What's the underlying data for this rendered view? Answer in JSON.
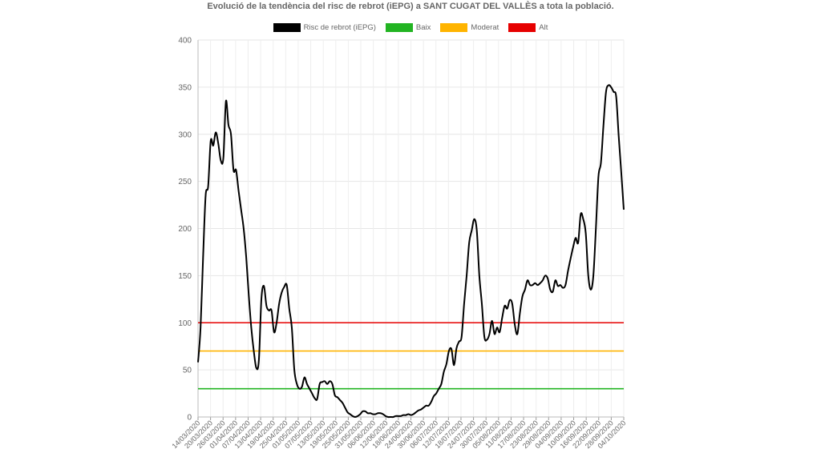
{
  "chart_data": {
    "type": "line",
    "title": "Evolució de la tendència del risc de rebrot (iEPG) a SANT CUGAT DEL VALLÈS a tota la població.",
    "xlabel": "",
    "ylabel": "",
    "ylim": [
      0,
      400
    ],
    "y_ticks": [
      0,
      50,
      100,
      150,
      200,
      250,
      300,
      350,
      400
    ],
    "grid": true,
    "legend_position": "top",
    "x_tick_labels": [
      "14/03/2020",
      "20/03/2020",
      "26/03/2020",
      "01/04/2020",
      "07/04/2020",
      "13/04/2020",
      "19/04/2020",
      "25/04/2020",
      "01/05/2020",
      "07/05/2020",
      "13/05/2020",
      "19/05/2020",
      "25/05/2020",
      "31/05/2020",
      "06/06/2020",
      "12/06/2020",
      "18/06/2020",
      "24/06/2020",
      "30/06/2020",
      "06/07/2020",
      "12/07/2020",
      "18/07/2020",
      "24/07/2020",
      "30/07/2020",
      "05/08/2020",
      "11/08/2020",
      "17/08/2020",
      "23/08/2020",
      "29/08/2020",
      "04/09/2020",
      "10/09/2020",
      "16/09/2020",
      "22/09/2020",
      "28/09/2020",
      "04/10/2020"
    ],
    "series": [
      {
        "name": "Risc de rebrot (iEPG)",
        "color": "#000000",
        "points": [
          [
            0,
            58
          ],
          [
            1,
            95
          ],
          [
            2,
            170
          ],
          [
            3,
            235
          ],
          [
            4,
            245
          ],
          [
            5,
            293
          ],
          [
            6,
            288
          ],
          [
            7,
            302
          ],
          [
            8,
            290
          ],
          [
            9,
            272
          ],
          [
            10,
            275
          ],
          [
            11,
            335
          ],
          [
            12,
            310
          ],
          [
            13,
            300
          ],
          [
            14,
            262
          ],
          [
            15,
            262
          ],
          [
            16,
            240
          ],
          [
            17,
            220
          ],
          [
            18,
            200
          ],
          [
            19,
            170
          ],
          [
            20,
            130
          ],
          [
            21,
            95
          ],
          [
            22,
            70
          ],
          [
            23,
            52
          ],
          [
            24,
            60
          ],
          [
            25,
            125
          ],
          [
            26,
            139
          ],
          [
            27,
            118
          ],
          [
            28,
            113
          ],
          [
            29,
            113
          ],
          [
            30,
            90
          ],
          [
            31,
            100
          ],
          [
            32,
            120
          ],
          [
            33,
            132
          ],
          [
            34,
            138
          ],
          [
            35,
            140
          ],
          [
            36,
            115
          ],
          [
            37,
            95
          ],
          [
            38,
            50
          ],
          [
            39,
            35
          ],
          [
            40,
            30
          ],
          [
            41,
            32
          ],
          [
            42,
            42
          ],
          [
            43,
            35
          ],
          [
            44,
            30
          ],
          [
            45,
            25
          ],
          [
            46,
            20
          ],
          [
            47,
            19
          ],
          [
            48,
            35
          ],
          [
            49,
            37
          ],
          [
            50,
            38
          ],
          [
            51,
            35
          ],
          [
            52,
            38
          ],
          [
            53,
            35
          ],
          [
            54,
            23
          ],
          [
            55,
            21
          ],
          [
            56,
            18
          ],
          [
            57,
            15
          ],
          [
            58,
            10
          ],
          [
            59,
            5
          ],
          [
            60,
            3
          ],
          [
            61,
            1
          ],
          [
            62,
            0
          ],
          [
            63,
            1
          ],
          [
            64,
            3
          ],
          [
            65,
            6
          ],
          [
            66,
            6
          ],
          [
            67,
            4
          ],
          [
            68,
            4
          ],
          [
            69,
            3
          ],
          [
            70,
            3
          ],
          [
            71,
            4
          ],
          [
            72,
            4
          ],
          [
            73,
            3
          ],
          [
            74,
            1
          ],
          [
            75,
            0
          ],
          [
            76,
            0
          ],
          [
            77,
            0
          ],
          [
            78,
            1
          ],
          [
            79,
            1
          ],
          [
            80,
            1
          ],
          [
            81,
            2
          ],
          [
            82,
            2
          ],
          [
            83,
            3
          ],
          [
            84,
            2
          ],
          [
            85,
            3
          ],
          [
            86,
            5
          ],
          [
            87,
            7
          ],
          [
            88,
            8
          ],
          [
            89,
            10
          ],
          [
            90,
            12
          ],
          [
            91,
            12
          ],
          [
            92,
            16
          ],
          [
            93,
            22
          ],
          [
            94,
            25
          ],
          [
            95,
            30
          ],
          [
            96,
            35
          ],
          [
            97,
            48
          ],
          [
            98,
            56
          ],
          [
            99,
            70
          ],
          [
            100,
            72
          ],
          [
            101,
            55
          ],
          [
            102,
            73
          ],
          [
            103,
            80
          ],
          [
            104,
            85
          ],
          [
            105,
            120
          ],
          [
            106,
            150
          ],
          [
            107,
            185
          ],
          [
            108,
            198
          ],
          [
            109,
            210
          ],
          [
            110,
            198
          ],
          [
            111,
            150
          ],
          [
            112,
            120
          ],
          [
            113,
            85
          ],
          [
            114,
            82
          ],
          [
            115,
            88
          ],
          [
            116,
            102
          ],
          [
            117,
            88
          ],
          [
            118,
            95
          ],
          [
            119,
            90
          ],
          [
            120,
            105
          ],
          [
            121,
            118
          ],
          [
            122,
            115
          ],
          [
            123,
            124
          ],
          [
            124,
            120
          ],
          [
            125,
            98
          ],
          [
            126,
            88
          ],
          [
            127,
            110
          ],
          [
            128,
            128
          ],
          [
            129,
            135
          ],
          [
            130,
            145
          ],
          [
            131,
            140
          ],
          [
            132,
            140
          ],
          [
            133,
            142
          ],
          [
            134,
            140
          ],
          [
            135,
            142
          ],
          [
            136,
            145
          ],
          [
            137,
            150
          ],
          [
            138,
            147
          ],
          [
            139,
            135
          ],
          [
            140,
            133
          ],
          [
            141,
            145
          ],
          [
            142,
            139
          ],
          [
            143,
            140
          ],
          [
            144,
            137
          ],
          [
            145,
            140
          ],
          [
            146,
            155
          ],
          [
            147,
            168
          ],
          [
            148,
            180
          ],
          [
            149,
            190
          ],
          [
            150,
            185
          ],
          [
            151,
            215
          ],
          [
            152,
            210
          ],
          [
            153,
            195
          ],
          [
            154,
            150
          ],
          [
            155,
            135
          ],
          [
            156,
            150
          ],
          [
            157,
            200
          ],
          [
            158,
            255
          ],
          [
            159,
            270
          ],
          [
            160,
            310
          ],
          [
            161,
            345
          ],
          [
            162,
            352
          ],
          [
            163,
            350
          ],
          [
            164,
            345
          ],
          [
            165,
            340
          ],
          [
            166,
            298
          ],
          [
            167,
            260
          ],
          [
            168,
            220
          ]
        ]
      },
      {
        "name": "Baix",
        "color": "#22b422",
        "value": 30
      },
      {
        "name": "Moderat",
        "color": "#ffb400",
        "value": 70
      },
      {
        "name": "Alt",
        "color": "#e60000",
        "value": 100
      }
    ]
  }
}
